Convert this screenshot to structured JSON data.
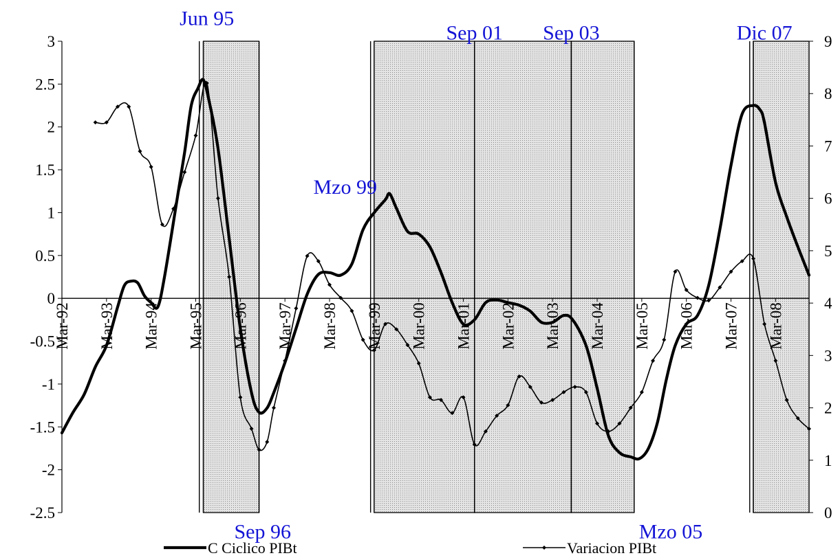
{
  "chart_data": {
    "type": "line",
    "y_left": {
      "min": -2.5,
      "max": 3,
      "step": 0.5,
      "tick_labels": [
        "3",
        "2.5",
        "2",
        "1.5",
        "1",
        "0.5",
        "0",
        "-0.5",
        "-1",
        "-1.5",
        "-2",
        "-2.5"
      ]
    },
    "y_right": {
      "min": 0,
      "max": 9,
      "step": 1,
      "tick_labels": [
        "9",
        "8",
        "7",
        "6",
        "5",
        "4",
        "3",
        "2",
        "1",
        "0"
      ]
    },
    "x_axis": {
      "start": 1992.25,
      "end": 2009.0,
      "tick_labels": [
        "Mar-92",
        "Mar-93",
        "Mar-94",
        "Mar-95",
        "Mar-96",
        "Mar-97",
        "Mar-98",
        "Mar-99",
        "Mar-00",
        "Mar-01",
        "Mar-02",
        "Mar-03",
        "Mar-04",
        "Mar-05",
        "Mar-06",
        "Mar-07",
        "Mar-08"
      ],
      "tick_years": [
        1992.25,
        1993.25,
        1994.25,
        1995.25,
        1996.25,
        1997.25,
        1998.25,
        1999.25,
        2000.25,
        2001.25,
        2002.25,
        2003.25,
        2004.25,
        2005.25,
        2006.25,
        2007.25,
        2008.25
      ]
    },
    "shaded_periods": [
      {
        "from": 1995.42,
        "to": 1996.67
      },
      {
        "from": 1999.25,
        "to": 2001.5
      },
      {
        "from": 2001.5,
        "to": 2003.67
      },
      {
        "from": 2003.67,
        "to": 2005.08
      },
      {
        "from": 2007.75,
        "to": 2009.0
      }
    ],
    "vertical_lines": [
      1995.33,
      1995.42,
      1996.67,
      1999.17,
      1999.25,
      2001.5,
      2003.67,
      2005.08,
      2007.67,
      2007.75
    ],
    "annotations": [
      {
        "text": "Jun 95",
        "x": 1995.5,
        "y": 3.27
      },
      {
        "text": "Sep 01",
        "x": 2001.5,
        "y": 3.1
      },
      {
        "text": "Sep 03",
        "x": 2003.67,
        "y": 3.1
      },
      {
        "text": "Dic 07",
        "x": 2008.0,
        "y": 3.1
      },
      {
        "text": "Mzo 99",
        "x": 1998.6,
        "y": 1.3
      },
      {
        "text": "Sep 96",
        "x": 1996.75,
        "y": -2.72
      },
      {
        "text": "Mzo 05",
        "x": 2005.9,
        "y": -2.72
      }
    ],
    "series": [
      {
        "name": "C Ciclico PIBt",
        "axis": "left",
        "style": "thick",
        "color": "#000000",
        "points": [
          [
            1992.25,
            -1.57
          ],
          [
            1992.5,
            -1.33
          ],
          [
            1992.75,
            -1.12
          ],
          [
            1993.0,
            -0.8
          ],
          [
            1993.25,
            -0.55
          ],
          [
            1993.5,
            -0.1
          ],
          [
            1993.65,
            0.15
          ],
          [
            1993.8,
            0.2
          ],
          [
            1993.95,
            0.18
          ],
          [
            1994.1,
            0.03
          ],
          [
            1994.25,
            -0.05
          ],
          [
            1994.4,
            -0.1
          ],
          [
            1994.55,
            0.25
          ],
          [
            1994.8,
            1.05
          ],
          [
            1995.0,
            1.7
          ],
          [
            1995.15,
            2.25
          ],
          [
            1995.3,
            2.45
          ],
          [
            1995.42,
            2.55
          ],
          [
            1995.55,
            2.3
          ],
          [
            1995.75,
            1.75
          ],
          [
            1996.0,
            0.7
          ],
          [
            1996.25,
            -0.35
          ],
          [
            1996.5,
            -1.1
          ],
          [
            1996.67,
            -1.33
          ],
          [
            1996.85,
            -1.28
          ],
          [
            1997.0,
            -1.1
          ],
          [
            1997.25,
            -0.75
          ],
          [
            1997.5,
            -0.35
          ],
          [
            1997.75,
            0.05
          ],
          [
            1998.0,
            0.28
          ],
          [
            1998.25,
            0.3
          ],
          [
            1998.5,
            0.27
          ],
          [
            1998.75,
            0.4
          ],
          [
            1999.0,
            0.8
          ],
          [
            1999.25,
            1.0
          ],
          [
            1999.5,
            1.15
          ],
          [
            1999.6,
            1.22
          ],
          [
            1999.75,
            1.05
          ],
          [
            2000.0,
            0.78
          ],
          [
            2000.25,
            0.75
          ],
          [
            2000.5,
            0.6
          ],
          [
            2000.75,
            0.3
          ],
          [
            2001.0,
            -0.05
          ],
          [
            2001.25,
            -0.3
          ],
          [
            2001.5,
            -0.25
          ],
          [
            2001.75,
            -0.05
          ],
          [
            2002.0,
            -0.02
          ],
          [
            2002.25,
            -0.05
          ],
          [
            2002.5,
            -0.08
          ],
          [
            2002.75,
            -0.15
          ],
          [
            2003.0,
            -0.28
          ],
          [
            2003.25,
            -0.28
          ],
          [
            2003.5,
            -0.2
          ],
          [
            2003.7,
            -0.25
          ],
          [
            2004.0,
            -0.55
          ],
          [
            2004.25,
            -1.05
          ],
          [
            2004.5,
            -1.6
          ],
          [
            2004.75,
            -1.8
          ],
          [
            2005.0,
            -1.85
          ],
          [
            2005.2,
            -1.87
          ],
          [
            2005.4,
            -1.75
          ],
          [
            2005.6,
            -1.45
          ],
          [
            2005.8,
            -0.95
          ],
          [
            2006.0,
            -0.55
          ],
          [
            2006.25,
            -0.3
          ],
          [
            2006.5,
            -0.2
          ],
          [
            2006.75,
            0.15
          ],
          [
            2007.0,
            0.8
          ],
          [
            2007.25,
            1.55
          ],
          [
            2007.5,
            2.15
          ],
          [
            2007.75,
            2.25
          ],
          [
            2007.9,
            2.2
          ],
          [
            2008.0,
            2.05
          ],
          [
            2008.25,
            1.35
          ],
          [
            2008.5,
            0.95
          ],
          [
            2008.75,
            0.6
          ],
          [
            2009.0,
            0.27
          ]
        ]
      },
      {
        "name": "Variacion PIBt",
        "axis": "right",
        "style": "thin-marker",
        "color": "#000000",
        "points": [
          [
            1993.0,
            7.45
          ],
          [
            1993.25,
            7.45
          ],
          [
            1993.5,
            7.75
          ],
          [
            1993.75,
            7.75
          ],
          [
            1994.0,
            6.9
          ],
          [
            1994.25,
            6.6
          ],
          [
            1994.5,
            5.5
          ],
          [
            1994.75,
            5.8
          ],
          [
            1995.0,
            6.5
          ],
          [
            1995.25,
            7.2
          ],
          [
            1995.5,
            8.2
          ],
          [
            1995.75,
            6.0
          ],
          [
            1996.0,
            4.5
          ],
          [
            1996.25,
            2.2
          ],
          [
            1996.5,
            1.6
          ],
          [
            1996.67,
            1.2
          ],
          [
            1996.85,
            1.35
          ],
          [
            1997.0,
            2.0
          ],
          [
            1997.25,
            2.9
          ],
          [
            1997.5,
            3.9
          ],
          [
            1997.75,
            4.9
          ],
          [
            1998.0,
            4.8
          ],
          [
            1998.25,
            4.35
          ],
          [
            1998.5,
            4.1
          ],
          [
            1998.75,
            3.85
          ],
          [
            1999.0,
            3.3
          ],
          [
            1999.25,
            3.1
          ],
          [
            1999.5,
            3.6
          ],
          [
            1999.75,
            3.5
          ],
          [
            2000.0,
            3.2
          ],
          [
            2000.25,
            2.85
          ],
          [
            2000.5,
            2.2
          ],
          [
            2000.75,
            2.15
          ],
          [
            2001.0,
            1.9
          ],
          [
            2001.25,
            2.2
          ],
          [
            2001.5,
            1.3
          ],
          [
            2001.75,
            1.55
          ],
          [
            2002.0,
            1.85
          ],
          [
            2002.25,
            2.05
          ],
          [
            2002.5,
            2.6
          ],
          [
            2002.75,
            2.4
          ],
          [
            2003.0,
            2.1
          ],
          [
            2003.25,
            2.15
          ],
          [
            2003.5,
            2.3
          ],
          [
            2003.75,
            2.4
          ],
          [
            2004.0,
            2.3
          ],
          [
            2004.25,
            1.7
          ],
          [
            2004.5,
            1.55
          ],
          [
            2004.75,
            1.7
          ],
          [
            2005.0,
            2.0
          ],
          [
            2005.25,
            2.3
          ],
          [
            2005.5,
            2.9
          ],
          [
            2005.75,
            3.3
          ],
          [
            2006.0,
            4.6
          ],
          [
            2006.25,
            4.25
          ],
          [
            2006.5,
            4.1
          ],
          [
            2006.75,
            4.05
          ],
          [
            2007.0,
            4.3
          ],
          [
            2007.25,
            4.6
          ],
          [
            2007.5,
            4.8
          ],
          [
            2007.75,
            4.85
          ],
          [
            2008.0,
            3.6
          ],
          [
            2008.25,
            2.9
          ],
          [
            2008.5,
            2.15
          ],
          [
            2008.75,
            1.8
          ],
          [
            2009.0,
            1.6
          ]
        ]
      }
    ],
    "legend": {
      "position": "bottom",
      "items": [
        {
          "label": "C Ciclico PIBt",
          "style": "thick"
        },
        {
          "label": "Variacion PIBt",
          "style": "thin-marker"
        }
      ]
    },
    "annotation_color": "#1515d6",
    "shade_color": "#d8d8d8"
  }
}
